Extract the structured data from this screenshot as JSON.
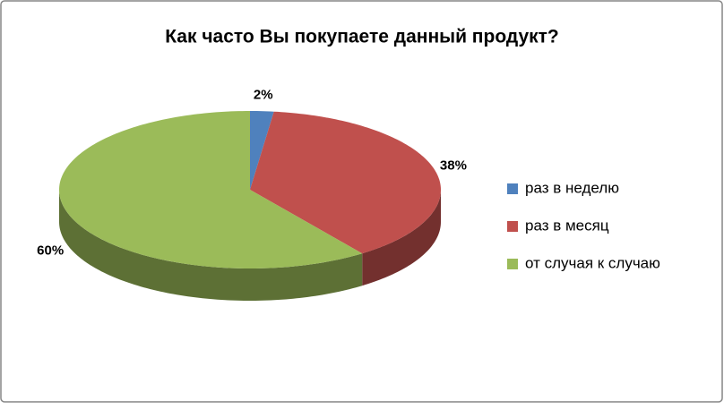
{
  "chart_data": {
    "type": "pie3d",
    "title": "Как часто Вы покупаете данный продукт?",
    "categories": [
      "раз в неделю",
      "раз в месяц",
      "от случая к случаю"
    ],
    "values": [
      2,
      38,
      60
    ],
    "value_labels": [
      "2%",
      "38%",
      "60%"
    ],
    "colors": [
      "#4f81bd",
      "#c0504d",
      "#9bbb59"
    ],
    "legend": "right"
  }
}
